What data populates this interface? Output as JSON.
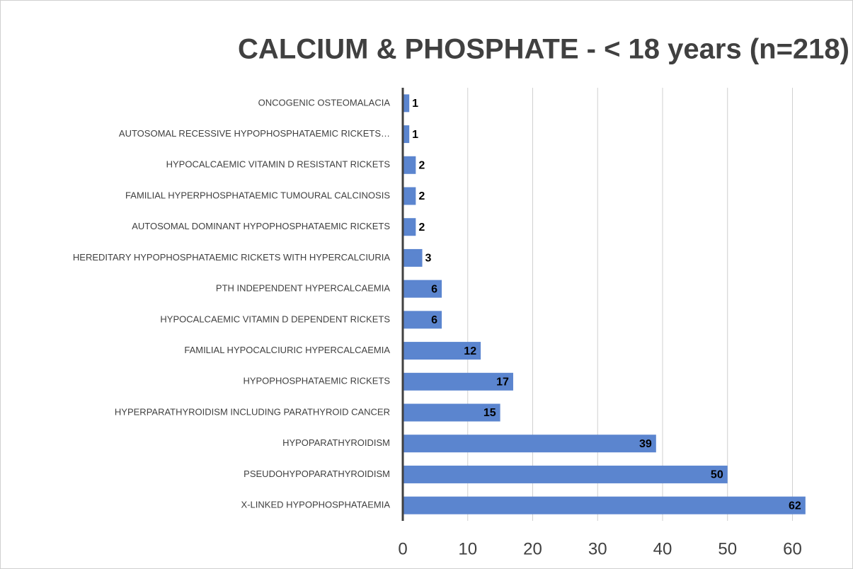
{
  "chart_data": {
    "type": "bar",
    "orientation": "horizontal",
    "title": "CALCIUM & PHOSPHATE - < 18 years  (n=218)",
    "categories": [
      "ONCOGENIC OSTEOMALACIA",
      "AUTOSOMAL RECESSIVE HYPOPHOSPHATAEMIC RICKETS…",
      "HYPOCALCAEMIC VITAMIN D RESISTANT RICKETS",
      "FAMILIAL HYPERPHOSPHATAEMIC TUMOURAL CALCINOSIS",
      "AUTOSOMAL DOMINANT HYPOPHOSPHATAEMIC RICKETS",
      "HEREDITARY HYPOPHOSPHATAEMIC RICKETS WITH HYPERCALCIURIA",
      "PTH INDEPENDENT HYPERCALCAEMIA",
      "HYPOCALCAEMIC VITAMIN D DEPENDENT RICKETS",
      "FAMILIAL HYPOCALCIURIC HYPERCALCAEMIA",
      "HYPOPHOSPHATAEMIC RICKETS",
      "HYPERPARATHYROIDISM INCLUDING PARATHYROID CANCER",
      "HYPOPARATHYROIDISM",
      "PSEUDOHYPOPARATHYROIDISM",
      "X-LINKED HYPOPHOSPHATAEMIA"
    ],
    "values": [
      1,
      1,
      2,
      2,
      2,
      3,
      6,
      6,
      12,
      17,
      15,
      39,
      50,
      62
    ],
    "color": "#5b85cf",
    "xlim": [
      0,
      63
    ],
    "xticks": [
      0,
      10,
      20,
      30,
      40,
      50,
      60
    ],
    "grid": true
  }
}
